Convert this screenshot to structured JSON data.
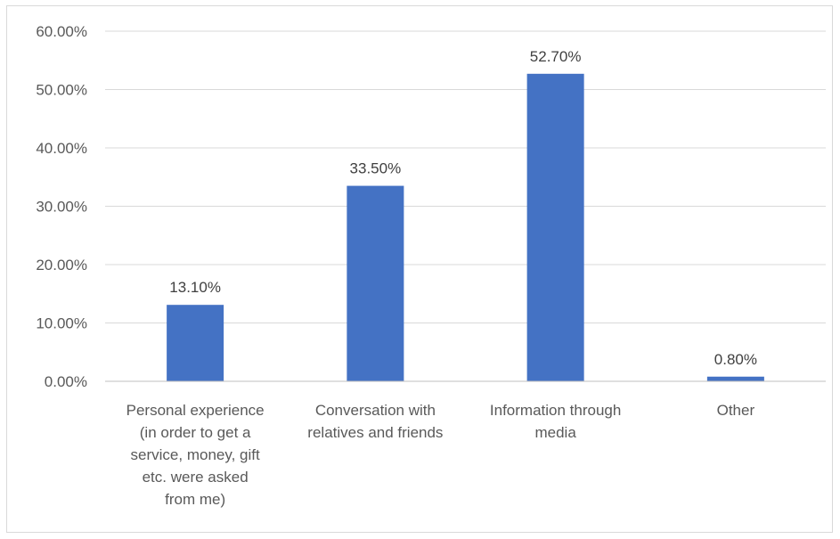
{
  "chart_data": {
    "type": "bar",
    "title": "",
    "xlabel": "",
    "ylabel": "",
    "categories": [
      "Personal experience (in order to get a service, money, gift etc. were asked from me)",
      "Conversation with relatives and friends",
      "Information through media",
      "Other"
    ],
    "category_lines": [
      [
        "Personal experience",
        "(in order to get a",
        "service, money, gift",
        "etc. were asked",
        "from me)"
      ],
      [
        "Conversation with",
        "relatives and friends"
      ],
      [
        "Information through",
        "media"
      ],
      [
        "Other"
      ]
    ],
    "values": [
      13.1,
      33.5,
      52.7,
      0.8
    ],
    "value_labels": [
      "13.10%",
      "33.50%",
      "52.70%",
      "0.80%"
    ],
    "ylim": [
      0,
      60
    ],
    "yticks": [
      0,
      10,
      20,
      30,
      40,
      50,
      60
    ],
    "ytick_labels": [
      "0.00%",
      "10.00%",
      "20.00%",
      "30.00%",
      "40.00%",
      "50.00%",
      "60.00%"
    ],
    "grid": true,
    "legend": "none",
    "colors": {
      "bar": "#4472c4",
      "grid": "#d9d9d9",
      "axis": "#bfbfbf"
    }
  }
}
